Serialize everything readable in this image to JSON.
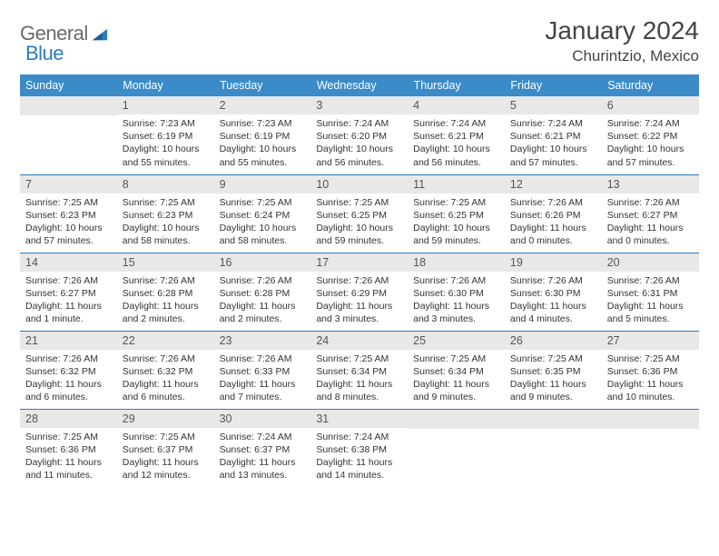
{
  "logo": {
    "general": "General",
    "blue": "Blue"
  },
  "title": "January 2024",
  "location": "Churintzio, Mexico",
  "colors": {
    "header_bg": "#3b8bc8",
    "header_text": "#ffffff",
    "daynum_bg": "#e8e8e8",
    "cell_border": "#2a7bbf",
    "logo_gray": "#6a6a6a",
    "logo_blue": "#2a7bbf",
    "text": "#333333"
  },
  "weekdays": [
    "Sunday",
    "Monday",
    "Tuesday",
    "Wednesday",
    "Thursday",
    "Friday",
    "Saturday"
  ],
  "start_offset": 1,
  "days": [
    {
      "n": "1",
      "sunrise": "7:23 AM",
      "sunset": "6:19 PM",
      "daylight": "10 hours and 55 minutes."
    },
    {
      "n": "2",
      "sunrise": "7:23 AM",
      "sunset": "6:19 PM",
      "daylight": "10 hours and 55 minutes."
    },
    {
      "n": "3",
      "sunrise": "7:24 AM",
      "sunset": "6:20 PM",
      "daylight": "10 hours and 56 minutes."
    },
    {
      "n": "4",
      "sunrise": "7:24 AM",
      "sunset": "6:21 PM",
      "daylight": "10 hours and 56 minutes."
    },
    {
      "n": "5",
      "sunrise": "7:24 AM",
      "sunset": "6:21 PM",
      "daylight": "10 hours and 57 minutes."
    },
    {
      "n": "6",
      "sunrise": "7:24 AM",
      "sunset": "6:22 PM",
      "daylight": "10 hours and 57 minutes."
    },
    {
      "n": "7",
      "sunrise": "7:25 AM",
      "sunset": "6:23 PM",
      "daylight": "10 hours and 57 minutes."
    },
    {
      "n": "8",
      "sunrise": "7:25 AM",
      "sunset": "6:23 PM",
      "daylight": "10 hours and 58 minutes."
    },
    {
      "n": "9",
      "sunrise": "7:25 AM",
      "sunset": "6:24 PM",
      "daylight": "10 hours and 58 minutes."
    },
    {
      "n": "10",
      "sunrise": "7:25 AM",
      "sunset": "6:25 PM",
      "daylight": "10 hours and 59 minutes."
    },
    {
      "n": "11",
      "sunrise": "7:25 AM",
      "sunset": "6:25 PM",
      "daylight": "10 hours and 59 minutes."
    },
    {
      "n": "12",
      "sunrise": "7:26 AM",
      "sunset": "6:26 PM",
      "daylight": "11 hours and 0 minutes."
    },
    {
      "n": "13",
      "sunrise": "7:26 AM",
      "sunset": "6:27 PM",
      "daylight": "11 hours and 0 minutes."
    },
    {
      "n": "14",
      "sunrise": "7:26 AM",
      "sunset": "6:27 PM",
      "daylight": "11 hours and 1 minute."
    },
    {
      "n": "15",
      "sunrise": "7:26 AM",
      "sunset": "6:28 PM",
      "daylight": "11 hours and 2 minutes."
    },
    {
      "n": "16",
      "sunrise": "7:26 AM",
      "sunset": "6:28 PM",
      "daylight": "11 hours and 2 minutes."
    },
    {
      "n": "17",
      "sunrise": "7:26 AM",
      "sunset": "6:29 PM",
      "daylight": "11 hours and 3 minutes."
    },
    {
      "n": "18",
      "sunrise": "7:26 AM",
      "sunset": "6:30 PM",
      "daylight": "11 hours and 3 minutes."
    },
    {
      "n": "19",
      "sunrise": "7:26 AM",
      "sunset": "6:30 PM",
      "daylight": "11 hours and 4 minutes."
    },
    {
      "n": "20",
      "sunrise": "7:26 AM",
      "sunset": "6:31 PM",
      "daylight": "11 hours and 5 minutes."
    },
    {
      "n": "21",
      "sunrise": "7:26 AM",
      "sunset": "6:32 PM",
      "daylight": "11 hours and 6 minutes."
    },
    {
      "n": "22",
      "sunrise": "7:26 AM",
      "sunset": "6:32 PM",
      "daylight": "11 hours and 6 minutes."
    },
    {
      "n": "23",
      "sunrise": "7:26 AM",
      "sunset": "6:33 PM",
      "daylight": "11 hours and 7 minutes."
    },
    {
      "n": "24",
      "sunrise": "7:25 AM",
      "sunset": "6:34 PM",
      "daylight": "11 hours and 8 minutes."
    },
    {
      "n": "25",
      "sunrise": "7:25 AM",
      "sunset": "6:34 PM",
      "daylight": "11 hours and 9 minutes."
    },
    {
      "n": "26",
      "sunrise": "7:25 AM",
      "sunset": "6:35 PM",
      "daylight": "11 hours and 9 minutes."
    },
    {
      "n": "27",
      "sunrise": "7:25 AM",
      "sunset": "6:36 PM",
      "daylight": "11 hours and 10 minutes."
    },
    {
      "n": "28",
      "sunrise": "7:25 AM",
      "sunset": "6:36 PM",
      "daylight": "11 hours and 11 minutes."
    },
    {
      "n": "29",
      "sunrise": "7:25 AM",
      "sunset": "6:37 PM",
      "daylight": "11 hours and 12 minutes."
    },
    {
      "n": "30",
      "sunrise": "7:24 AM",
      "sunset": "6:37 PM",
      "daylight": "11 hours and 13 minutes."
    },
    {
      "n": "31",
      "sunrise": "7:24 AM",
      "sunset": "6:38 PM",
      "daylight": "11 hours and 14 minutes."
    }
  ],
  "labels": {
    "sunrise": "Sunrise:",
    "sunset": "Sunset:",
    "daylight": "Daylight:"
  }
}
